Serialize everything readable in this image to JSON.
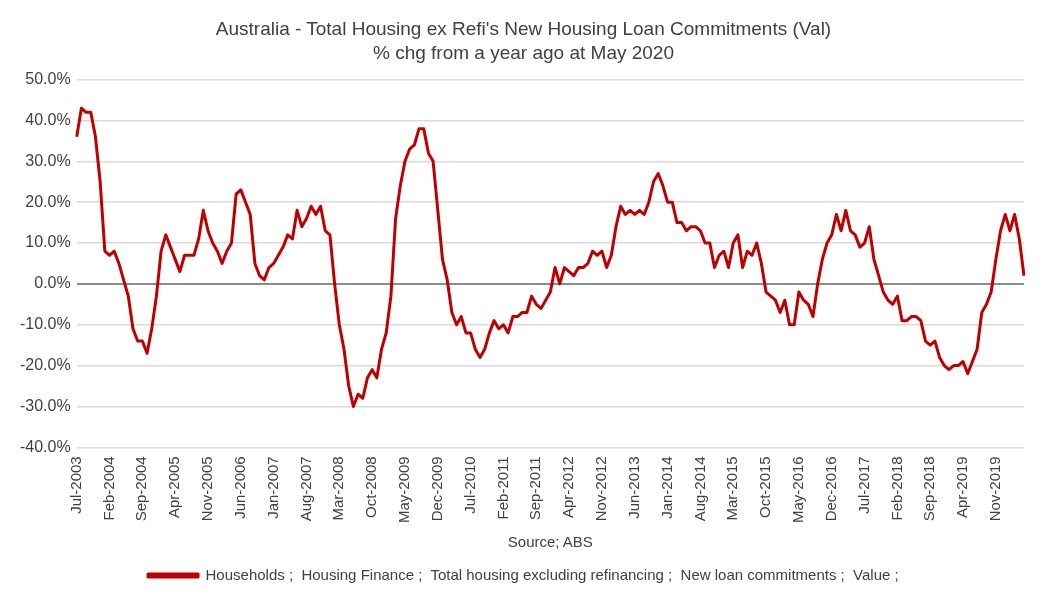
{
  "chart_data": {
    "type": "line",
    "title": "Australia - Total Housing ex Refi's New Housing Loan Commitments (Val)",
    "subtitle": "% chg from a year ago at May 2020",
    "annotations": [
      "Source; ABS"
    ],
    "categories": [
      "Jul-2003",
      null,
      null,
      null,
      null,
      null,
      null,
      "Feb-2004",
      null,
      null,
      null,
      null,
      null,
      null,
      "Sep-2004",
      null,
      null,
      null,
      null,
      null,
      null,
      "Apr-2005",
      null,
      null,
      null,
      null,
      null,
      null,
      "Nov-2005",
      null,
      null,
      null,
      null,
      null,
      null,
      "Jun-2006",
      null,
      null,
      null,
      null,
      null,
      null,
      "Jan-2007",
      null,
      null,
      null,
      null,
      null,
      null,
      "Aug-2007",
      null,
      null,
      null,
      null,
      null,
      null,
      "Mar-2008",
      null,
      null,
      null,
      null,
      null,
      null,
      "Oct-2008",
      null,
      null,
      null,
      null,
      null,
      null,
      "May-2009",
      null,
      null,
      null,
      null,
      null,
      null,
      "Dec-2009",
      null,
      null,
      null,
      null,
      null,
      null,
      "Jul-2010",
      null,
      null,
      null,
      null,
      null,
      null,
      "Feb-2011",
      null,
      null,
      null,
      null,
      null,
      null,
      "Sep-2011",
      null,
      null,
      null,
      null,
      null,
      null,
      "Apr-2012",
      null,
      null,
      null,
      null,
      null,
      null,
      "Nov-2012",
      null,
      null,
      null,
      null,
      null,
      null,
      "Jun-2013",
      null,
      null,
      null,
      null,
      null,
      null,
      "Jan-2014",
      null,
      null,
      null,
      null,
      null,
      null,
      "Aug-2014",
      null,
      null,
      null,
      null,
      null,
      null,
      "Mar-2015",
      null,
      null,
      null,
      null,
      null,
      null,
      "Oct-2015",
      null,
      null,
      null,
      null,
      null,
      null,
      "May-2016",
      null,
      null,
      null,
      null,
      null,
      null,
      "Dec-2016",
      null,
      null,
      null,
      null,
      null,
      null,
      "Jul-2017",
      null,
      null,
      null,
      null,
      null,
      null,
      "Feb-2018",
      null,
      null,
      null,
      null,
      null,
      null,
      "Sep-2018",
      null,
      null,
      null,
      null,
      null,
      null,
      "Apr-2019",
      null,
      null,
      null,
      null,
      null,
      null,
      "Nov-2019",
      null,
      null,
      null,
      null,
      null,
      null
    ],
    "series": [
      {
        "name": "Households ;  Housing Finance ;  Total housing excluding refinancing ;  New loan commitments ;  Value ;",
        "color": "#c00000",
        "values": [
          36,
          43,
          42,
          42,
          36,
          25,
          8,
          7,
          8,
          5,
          1,
          -3,
          -11,
          -14,
          -14,
          -17,
          -11,
          -3,
          8,
          12,
          9,
          6,
          3,
          7,
          7,
          7,
          11,
          18,
          13,
          10,
          8,
          5,
          8,
          10,
          22,
          23,
          20,
          17,
          5,
          2,
          1,
          4,
          5,
          7,
          9,
          12,
          11,
          18,
          14,
          16,
          19,
          17,
          19,
          13,
          12,
          0,
          -10,
          -16,
          -25,
          -30,
          -27,
          -28,
          -23,
          -21,
          -23,
          -16,
          -12,
          -3,
          16,
          24,
          30,
          33,
          34,
          38,
          38,
          32,
          30,
          18,
          6,
          1,
          -7,
          -10,
          -8,
          -12,
          -12,
          -16,
          -18,
          -16,
          -12,
          -9,
          -11,
          -10,
          -12,
          -8,
          -8,
          -7,
          -7,
          -3,
          -5,
          -6,
          -4,
          -2,
          4,
          0,
          4,
          3,
          2,
          4,
          4,
          5,
          8,
          7,
          8,
          4,
          7,
          14,
          19,
          17,
          18,
          17,
          18,
          17,
          20,
          25,
          27,
          24,
          20,
          20,
          15,
          15,
          13,
          14,
          14,
          13,
          10,
          10,
          4,
          7,
          8,
          4,
          10,
          12,
          4,
          8,
          7,
          10,
          5,
          -2,
          -3,
          -4,
          -7,
          -4,
          -10,
          -10,
          -2,
          -4,
          -5,
          -8,
          0,
          6,
          10,
          12,
          17,
          13,
          18,
          13,
          12,
          9,
          10,
          14,
          6,
          2,
          -2,
          -4,
          -5,
          -3,
          -9,
          -9,
          -8,
          -8,
          -9,
          -14,
          -15,
          -14,
          -18,
          -20,
          -21,
          -20,
          -20,
          -19,
          -22,
          -19,
          -16,
          -7,
          -5,
          -2,
          6,
          13,
          17,
          13,
          17,
          11,
          2
        ]
      }
    ],
    "ylim": [
      -40,
      50
    ],
    "yticks": [
      {
        "value": -40,
        "label": "-40.0%"
      },
      {
        "value": -30,
        "label": "-30.0%"
      },
      {
        "value": -20,
        "label": "-20.0%"
      },
      {
        "value": -10,
        "label": "-10.0%"
      },
      {
        "value": 0,
        "label": "0.0%"
      },
      {
        "value": 10,
        "label": "10.0%"
      },
      {
        "value": 20,
        "label": "20.0%"
      },
      {
        "value": 30,
        "label": "30.0%"
      },
      {
        "value": 40,
        "label": "40.0%"
      },
      {
        "value": 50,
        "label": "50.0%"
      }
    ],
    "grid": "y",
    "legend": "bottom",
    "marker": "none",
    "line_style": "solid"
  }
}
